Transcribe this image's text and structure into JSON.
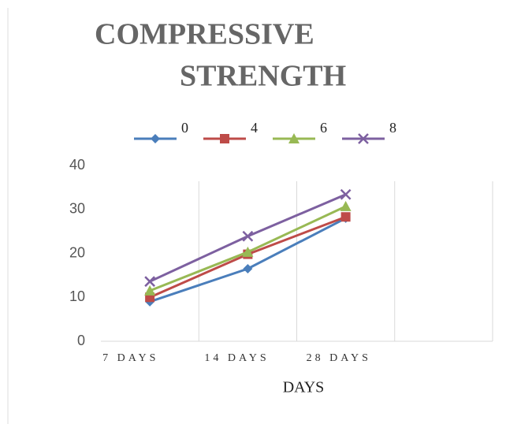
{
  "chart_data": {
    "type": "line",
    "title": [
      "COMPRESSIVE",
      "STRENGTH"
    ],
    "x_label": "DAYS",
    "categories": [
      "7 DAYS",
      "14 DAYS",
      "28 DAYS",
      null
    ],
    "series": [
      {
        "name": "0",
        "color": "#4a7ebb",
        "marker": "diamond",
        "values": [
          9,
          16.5,
          28,
          null
        ]
      },
      {
        "name": "4",
        "color": "#be4b48",
        "marker": "square",
        "values": [
          10,
          19.8,
          28.3,
          null
        ]
      },
      {
        "name": "6",
        "color": "#98b954",
        "marker": "triangle",
        "values": [
          11.5,
          20.3,
          30.7,
          null
        ]
      },
      {
        "name": "8",
        "color": "#7d60a0",
        "marker": "x",
        "values": [
          13.6,
          23.9,
          33.4,
          null
        ]
      }
    ],
    "ylim": [
      0,
      40
    ],
    "yticks": [
      0,
      10,
      20,
      30,
      40
    ],
    "grid": "x",
    "legend": "top"
  }
}
